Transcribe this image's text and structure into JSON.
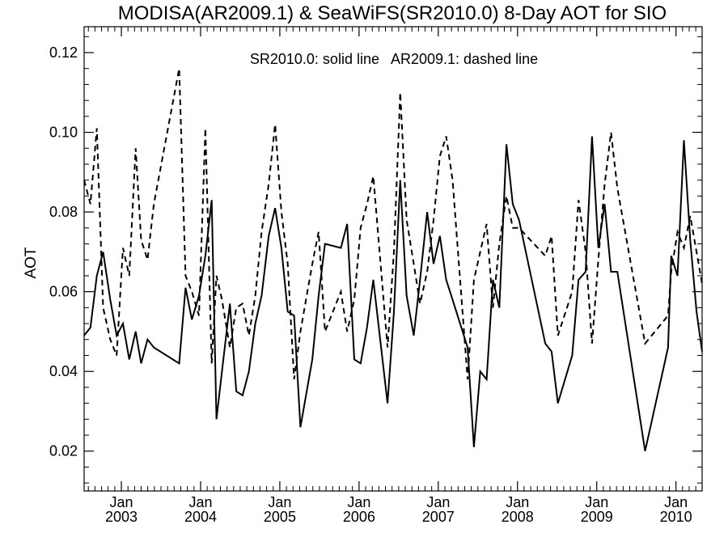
{
  "chart_data": {
    "type": "line",
    "title": "MODISA(AR2009.1) & SeaWiFS(SR2010.0) 8-Day AOT for SIO",
    "annotation": "SR2010.0: solid line   AR2009.1: dashed line",
    "xlabel": "",
    "ylabel": "AOT",
    "xlim": [
      2002.53,
      2010.33
    ],
    "ylim": [
      0.01,
      0.1265
    ],
    "grid": false,
    "line_color": "#000000",
    "y_ticks": [
      {
        "value": 0.02,
        "label": "0.02"
      },
      {
        "value": 0.04,
        "label": "0.04"
      },
      {
        "value": 0.06,
        "label": "0.06"
      },
      {
        "value": 0.08,
        "label": "0.08"
      },
      {
        "value": 0.1,
        "label": "0.10"
      },
      {
        "value": 0.12,
        "label": "0.12"
      }
    ],
    "x_ticks": [
      {
        "value": 2003.0,
        "month": "Jan",
        "year": "2003"
      },
      {
        "value": 2004.0,
        "month": "Jan",
        "year": "2004"
      },
      {
        "value": 2005.0,
        "month": "Jan",
        "year": "2005"
      },
      {
        "value": 2006.0,
        "month": "Jan",
        "year": "2006"
      },
      {
        "value": 2007.0,
        "month": "Jan",
        "year": "2007"
      },
      {
        "value": 2008.0,
        "month": "Jan",
        "year": "2008"
      },
      {
        "value": 2009.0,
        "month": "Jan",
        "year": "2009"
      },
      {
        "value": 2010.0,
        "month": "Jan",
        "year": "2010"
      }
    ],
    "series": [
      {
        "style": "solid",
        "x": [
          2002.53,
          2002.61,
          2002.69,
          2002.77,
          2002.86,
          2002.94,
          2003.02,
          2003.1,
          2003.18,
          2003.25,
          2003.33,
          2003.41,
          2003.73,
          2003.81,
          2003.89,
          2003.98,
          2004.06,
          2004.14,
          2004.2,
          2004.27,
          2004.37,
          2004.45,
          2004.53,
          2004.61,
          2004.69,
          2004.77,
          2004.86,
          2004.94,
          2005.02,
          2005.1,
          2005.18,
          2005.26,
          2005.33,
          2005.41,
          2005.49,
          2005.57,
          2005.77,
          2005.85,
          2005.94,
          2006.02,
          2006.1,
          2006.18,
          2006.36,
          2006.44,
          2006.52,
          2006.6,
          2006.69,
          2006.77,
          2006.86,
          2006.94,
          2007.02,
          2007.1,
          2007.18,
          2007.37,
          2007.45,
          2007.53,
          2007.61,
          2007.69,
          2007.77,
          2007.86,
          2007.94,
          2008.02,
          2008.35,
          2008.43,
          2008.51,
          2008.69,
          2008.77,
          2008.86,
          2008.94,
          2009.02,
          2009.1,
          2009.18,
          2009.26,
          2009.61,
          2009.9,
          2009.94,
          2010.02,
          2010.1,
          2010.18,
          2010.26,
          2010.33
        ],
        "y": [
          0.049,
          0.051,
          0.064,
          0.07,
          0.058,
          0.049,
          0.052,
          0.043,
          0.05,
          0.042,
          0.048,
          0.046,
          0.042,
          0.061,
          0.053,
          0.059,
          0.069,
          0.083,
          0.028,
          0.04,
          0.057,
          0.035,
          0.034,
          0.04,
          0.052,
          0.059,
          0.074,
          0.081,
          0.071,
          0.055,
          0.054,
          0.026,
          0.034,
          0.043,
          0.059,
          0.072,
          0.071,
          0.077,
          0.043,
          0.042,
          0.051,
          0.063,
          0.032,
          0.055,
          0.088,
          0.059,
          0.049,
          0.063,
          0.08,
          0.067,
          0.074,
          0.063,
          0.058,
          0.046,
          0.021,
          0.04,
          0.038,
          0.063,
          0.056,
          0.097,
          0.082,
          0.078,
          0.047,
          0.045,
          0.032,
          0.044,
          0.063,
          0.065,
          0.099,
          0.071,
          0.082,
          0.065,
          0.065,
          0.02,
          0.046,
          0.069,
          0.064,
          0.098,
          0.073,
          0.055,
          0.045
        ]
      },
      {
        "style": "dashed",
        "x": [
          2002.53,
          2002.61,
          2002.69,
          2002.77,
          2002.86,
          2002.94,
          2003.02,
          2003.1,
          2003.18,
          2003.25,
          2003.33,
          2003.41,
          2003.73,
          2003.81,
          2003.89,
          2003.98,
          2004.06,
          2004.14,
          2004.2,
          2004.27,
          2004.37,
          2004.45,
          2004.53,
          2004.61,
          2004.69,
          2004.77,
          2004.86,
          2004.94,
          2005.02,
          2005.1,
          2005.18,
          2005.26,
          2005.33,
          2005.41,
          2005.49,
          2005.57,
          2005.77,
          2005.85,
          2005.94,
          2006.02,
          2006.1,
          2006.18,
          2006.36,
          2006.44,
          2006.52,
          2006.6,
          2006.69,
          2006.77,
          2006.86,
          2006.94,
          2007.02,
          2007.1,
          2007.18,
          2007.37,
          2007.45,
          2007.53,
          2007.61,
          2007.69,
          2007.77,
          2007.86,
          2007.94,
          2008.02,
          2008.35,
          2008.43,
          2008.51,
          2008.69,
          2008.77,
          2008.86,
          2008.94,
          2009.02,
          2009.1,
          2009.18,
          2009.26,
          2009.61,
          2009.9,
          2009.94,
          2010.02,
          2010.1,
          2010.18,
          2010.26,
          2010.33
        ],
        "y": [
          0.088,
          0.082,
          0.101,
          0.056,
          0.048,
          0.044,
          0.071,
          0.064,
          0.096,
          0.073,
          0.068,
          0.082,
          0.116,
          0.064,
          0.06,
          0.054,
          0.101,
          0.042,
          0.064,
          0.058,
          0.046,
          0.056,
          0.057,
          0.049,
          0.059,
          0.075,
          0.087,
          0.102,
          0.08,
          0.067,
          0.038,
          0.05,
          0.058,
          0.067,
          0.075,
          0.05,
          0.06,
          0.05,
          0.058,
          0.076,
          0.082,
          0.089,
          0.046,
          0.07,
          0.11,
          0.078,
          0.067,
          0.057,
          0.065,
          0.078,
          0.094,
          0.099,
          0.088,
          0.038,
          0.063,
          0.07,
          0.077,
          0.056,
          0.072,
          0.084,
          0.076,
          0.076,
          0.069,
          0.074,
          0.049,
          0.06,
          0.083,
          0.07,
          0.047,
          0.068,
          0.087,
          0.1,
          0.086,
          0.047,
          0.054,
          0.065,
          0.075,
          0.071,
          0.079,
          0.07,
          0.062
        ]
      }
    ]
  }
}
